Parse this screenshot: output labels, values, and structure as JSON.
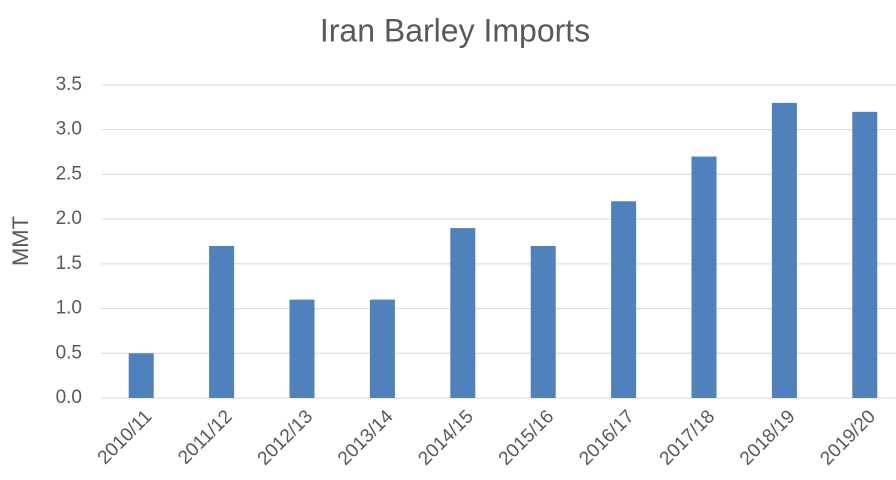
{
  "chart_data": {
    "type": "bar",
    "title": "Iran Barley Imports",
    "y_label": "MMT",
    "categories": [
      "2010/11",
      "2011/12",
      "2012/13",
      "2013/14",
      "2014/15",
      "2015/16",
      "2016/17",
      "2017/18",
      "2018/19",
      "2019/20"
    ],
    "values": [
      0.5,
      1.7,
      1.1,
      1.1,
      1.9,
      1.7,
      2.2,
      2.7,
      3.3,
      3.2
    ],
    "color": "#4f81bd",
    "ylim": [
      0,
      3.5
    ],
    "yticks": [
      {
        "value": 0,
        "label": "0.0"
      },
      0.5,
      {
        "value": 1,
        "label": "1.0"
      },
      1.5,
      {
        "value": 2,
        "label": "2.0"
      },
      2.5,
      {
        "value": 3,
        "label": "3.0"
      },
      3.5
    ],
    "grid": true
  }
}
